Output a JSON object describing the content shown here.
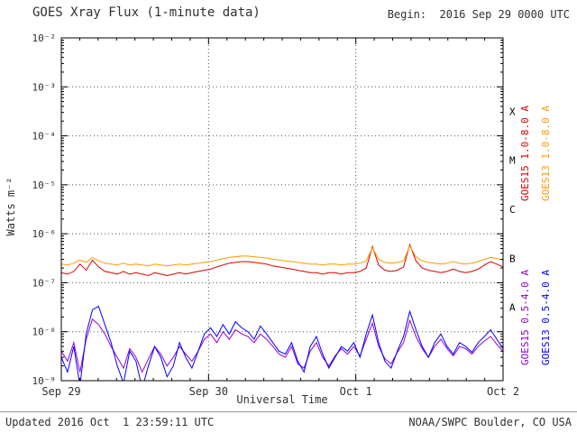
{
  "header": {
    "title": "GOES Xray Flux (1-minute data)",
    "begin": "Begin:  2016 Sep 29 0000 UTC"
  },
  "footer": {
    "updated": "Updated 2016 Oct  1 23:59:11 UTC",
    "credit": "NOAA/SWPC Boulder, CO USA"
  },
  "style": {
    "text_color": "#303030",
    "axis_color": "#000000",
    "grid_color": "#555555"
  },
  "chart_data": {
    "type": "line",
    "title": "GOES Xray Flux (1-minute data)",
    "xlabel": "Universal Time",
    "ylabel": "Watts m⁻²",
    "x_unit": "hours since 2016-09-29 00:00 UTC",
    "x_range_hours": [
      0,
      72
    ],
    "ylim": [
      1e-09,
      0.01
    ],
    "y_scale": "log",
    "grid": {
      "h_exponents": [
        -3,
        -4,
        -5,
        -6,
        -7,
        -8
      ],
      "v_hours": [
        24,
        48
      ],
      "style": "dotted"
    },
    "x_minor_tick_hours": 3,
    "y_ticks": [
      {
        "exp": -2,
        "label": "10⁻²"
      },
      {
        "exp": -3,
        "label": "10⁻³"
      },
      {
        "exp": -4,
        "label": "10⁻⁴"
      },
      {
        "exp": -5,
        "label": "10⁻⁵"
      },
      {
        "exp": -6,
        "label": "10⁻⁶"
      },
      {
        "exp": -7,
        "label": "10⁻⁷"
      },
      {
        "exp": -8,
        "label": "10⁻⁸"
      },
      {
        "exp": -9,
        "label": "10⁻⁹"
      }
    ],
    "x_ticks": [
      {
        "hour": 0,
        "label": "Sep 29"
      },
      {
        "hour": 24,
        "label": "Sep 30"
      },
      {
        "hour": 48,
        "label": "Oct 1"
      },
      {
        "hour": 72,
        "label": "Oct 2"
      }
    ],
    "flare_classes": [
      {
        "label": "X",
        "exp": -3.5
      },
      {
        "label": "M",
        "exp": -4.5
      },
      {
        "label": "C",
        "exp": -5.5
      },
      {
        "label": "B",
        "exp": -6.5
      },
      {
        "label": "A",
        "exp": -7.5
      }
    ],
    "series": [
      {
        "name": "GOES15 1.0-8.0 A",
        "color": "#dd0000",
        "scale": 1e-07,
        "step_hours": 1,
        "values": [
          1.6,
          1.5,
          1.7,
          2.4,
          1.8,
          2.9,
          2.1,
          1.7,
          1.6,
          1.5,
          1.7,
          1.5,
          1.6,
          1.5,
          1.4,
          1.6,
          1.5,
          1.4,
          1.5,
          1.6,
          1.5,
          1.6,
          1.7,
          1.8,
          1.9,
          2.1,
          2.3,
          2.5,
          2.6,
          2.7,
          2.7,
          2.6,
          2.5,
          2.4,
          2.2,
          2.1,
          2.0,
          1.9,
          1.8,
          1.7,
          1.6,
          1.6,
          1.5,
          1.6,
          1.6,
          1.5,
          1.6,
          1.6,
          1.7,
          2.0,
          5.5,
          2.3,
          1.8,
          1.7,
          1.8,
          2.1,
          6.0,
          2.8,
          2.0,
          1.8,
          1.7,
          1.6,
          1.7,
          1.9,
          1.7,
          1.6,
          1.7,
          1.9,
          2.3,
          2.7,
          2.4,
          2.1
        ]
      },
      {
        "name": "GOES13 1.0-8.0 A",
        "color": "#ff9900",
        "scale": 1e-07,
        "step_hours": 1,
        "values": [
          2.4,
          2.3,
          2.5,
          2.9,
          2.6,
          3.3,
          2.8,
          2.5,
          2.4,
          2.3,
          2.5,
          2.3,
          2.4,
          2.3,
          2.2,
          2.4,
          2.3,
          2.2,
          2.3,
          2.4,
          2.3,
          2.4,
          2.5,
          2.6,
          2.7,
          2.9,
          3.1,
          3.3,
          3.4,
          3.5,
          3.5,
          3.4,
          3.3,
          3.2,
          3.0,
          2.9,
          2.8,
          2.7,
          2.6,
          2.5,
          2.4,
          2.4,
          2.3,
          2.4,
          2.4,
          2.3,
          2.4,
          2.4,
          2.5,
          2.8,
          5.2,
          3.0,
          2.6,
          2.5,
          2.6,
          2.8,
          5.6,
          3.4,
          2.8,
          2.6,
          2.5,
          2.4,
          2.5,
          2.7,
          2.5,
          2.4,
          2.5,
          2.7,
          3.0,
          3.3,
          3.1,
          2.9
        ]
      },
      {
        "name": "GOES15 0.5-4.0 A",
        "color": "#9400d3",
        "scale": 1e-09,
        "step_hours": 1,
        "values": [
          4,
          2.5,
          6,
          1.5,
          7,
          18,
          14,
          9,
          5,
          3,
          1.8,
          4.5,
          3,
          1.5,
          2.8,
          5,
          3.5,
          2,
          3,
          5,
          3.5,
          2.5,
          4,
          7,
          9,
          6,
          10,
          7,
          11,
          9,
          8,
          6,
          9,
          7,
          5,
          3.5,
          3,
          5,
          2.2,
          1.8,
          4,
          6,
          3,
          2,
          3.2,
          4.5,
          3.5,
          5,
          3.2,
          7,
          15,
          5,
          2.8,
          2.2,
          3.8,
          6,
          17,
          8,
          4.5,
          3,
          5,
          7,
          4.5,
          3.2,
          5,
          4.5,
          3.5,
          5,
          6.5,
          8,
          5.5,
          4
        ]
      },
      {
        "name": "GOES13 0.5-4.0 A",
        "color": "#0000ff",
        "scale": 1e-09,
        "step_hours": 1,
        "values": [
          3,
          1.5,
          5,
          0.8,
          9,
          28,
          33,
          14,
          6,
          2,
          0.9,
          4,
          2.5,
          0.7,
          2,
          5,
          3,
          1.2,
          2,
          6,
          3,
          1.8,
          4,
          9,
          12,
          8,
          14,
          9,
          16,
          12,
          10,
          7,
          13,
          9,
          6,
          4,
          3.5,
          6,
          2.5,
          1.5,
          5,
          8,
          3.5,
          1.8,
          3,
          5,
          4,
          6,
          3,
          9,
          22,
          6,
          2.5,
          1.8,
          4,
          8,
          26,
          11,
          5,
          3,
          6,
          9,
          5,
          3.5,
          6,
          5,
          3.8,
          6,
          8,
          11,
          7,
          4.5
        ]
      }
    ],
    "right_labels": [
      {
        "text": "GOES15 1.0-8.0 A",
        "color": "#dd0000",
        "column": 0,
        "half": "top"
      },
      {
        "text": "GOES13 1.0-8.0 A",
        "color": "#ff9900",
        "column": 1,
        "half": "top"
      },
      {
        "text": "GOES15 0.5-4.0 A",
        "color": "#9400d3",
        "column": 0,
        "half": "bottom"
      },
      {
        "text": "GOES13 0.5-4.0 A",
        "color": "#0000ff",
        "column": 1,
        "half": "bottom"
      }
    ],
    "legend_position": "right-rotated",
    "grid_on": true
  }
}
